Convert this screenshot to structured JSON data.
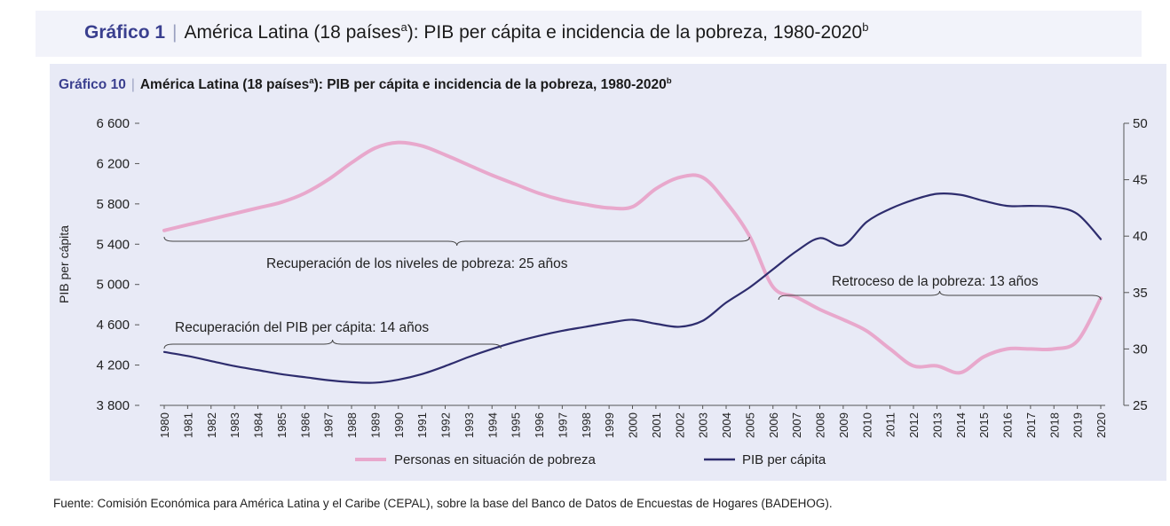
{
  "outer_title": {
    "label": "Gráfico 1",
    "separator": "|",
    "text": "América Latina (18 países",
    "sup_a": "a",
    "text2": "): PIB per cápita e incidencia de la pobreza, 1980-2020",
    "sup_b": "b"
  },
  "inner_title": {
    "label": "Gráfico 10",
    "separator": "|",
    "text": "América Latina (18 países",
    "sup_a": "a",
    "text2": "): PIB per cápita e incidencia de la pobreza, 1980-2020",
    "sup_b": "b"
  },
  "source": "Fuente: Comisión Económica para América Latina y el Caribe (CEPAL), sobre la base del Banco de Datos de Encuestas de Hogares (BADEHOG).",
  "colors": {
    "gdp": "#2e2d6e",
    "poverty": "#e8a8cc",
    "axis": "#555555",
    "panel": "#e8eaf6"
  },
  "chart_data": {
    "type": "line",
    "ylabel": "PIB per cápita",
    "x": [
      1980,
      1981,
      1982,
      1983,
      1984,
      1985,
      1986,
      1987,
      1988,
      1989,
      1990,
      1991,
      1992,
      1993,
      1994,
      1995,
      1996,
      1997,
      1998,
      1999,
      2000,
      2001,
      2002,
      2003,
      2004,
      2005,
      2006,
      2007,
      2008,
      2009,
      2010,
      2011,
      2012,
      2013,
      2014,
      2015,
      2016,
      2017,
      2018,
      2019,
      2020
    ],
    "x_tick_labels": [
      "1980",
      "1981",
      "1982",
      "1983",
      "1984",
      "1985",
      "1986",
      "1987",
      "1988",
      "1989",
      "1990",
      "1991",
      "1992",
      "1993",
      "1994",
      "1995",
      "1996",
      "1997",
      "1998",
      "1999",
      "2000",
      "2001",
      "2002",
      "2003",
      "2004",
      "2005",
      "2006",
      "2007",
      "2008",
      "2009",
      "2010",
      "2011",
      "2012",
      "2013",
      "2014",
      "2015",
      "2016",
      "2017",
      "2018",
      "2019",
      "2020"
    ],
    "y_left": {
      "min": 3800,
      "max": 6600,
      "ticks": [
        3800,
        4200,
        4600,
        5000,
        5400,
        5800,
        6200,
        6600
      ],
      "tick_labels": [
        "3 800",
        "4 200",
        "4 600",
        "5 000",
        "5 400",
        "5 800",
        "6 200",
        "6 600"
      ]
    },
    "y_right": {
      "min": 25,
      "max": 50,
      "ticks": [
        25,
        30,
        35,
        40,
        45,
        50
      ],
      "tick_labels": [
        "25",
        "30",
        "35",
        "40",
        "45",
        "50"
      ]
    },
    "series": [
      {
        "name": "Personas en situación de pobreza",
        "axis": "right",
        "values": [
          40.5,
          41.0,
          41.5,
          42.0,
          42.5,
          43.0,
          43.8,
          45.0,
          46.5,
          47.8,
          48.3,
          48.0,
          47.2,
          46.3,
          45.4,
          44.6,
          43.8,
          43.2,
          42.8,
          42.5,
          42.6,
          44.2,
          45.2,
          45.2,
          43.0,
          40.0,
          35.5,
          34.6,
          33.5,
          32.6,
          31.6,
          30.0,
          28.5,
          28.5,
          27.9,
          29.3,
          30.0,
          30.0,
          30.0,
          30.7,
          34.5
        ]
      },
      {
        "name": "PIB per cápita",
        "axis": "left",
        "values": [
          4330,
          4290,
          4240,
          4190,
          4150,
          4110,
          4080,
          4050,
          4030,
          4025,
          4055,
          4110,
          4190,
          4280,
          4360,
          4430,
          4490,
          4540,
          4580,
          4620,
          4650,
          4610,
          4580,
          4640,
          4820,
          4970,
          5150,
          5330,
          5460,
          5390,
          5620,
          5750,
          5840,
          5900,
          5890,
          5830,
          5780,
          5780,
          5770,
          5700,
          5450
        ]
      }
    ],
    "annotations": [
      {
        "text": "Recuperación de los niveles de pobreza: 25 años",
        "from": 1980,
        "to": 2005
      },
      {
        "text": "Recuperación del PIB per cápita: 14 años",
        "from": 1980,
        "to": 1994
      },
      {
        "text": "Retroceso de la pobreza: 13 años",
        "from": 2007,
        "to": 2020
      }
    ],
    "legend": {
      "position": "bottom"
    },
    "grid": false
  }
}
